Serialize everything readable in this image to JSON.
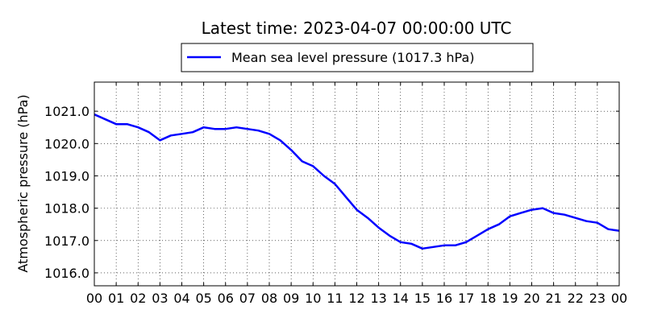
{
  "chart_data": {
    "type": "line",
    "title": "Latest time: 2023-04-07 00:00:00 UTC",
    "ylabel": "Atmospheric pressure (hPa)",
    "xlabel": "",
    "legend": {
      "placement": "top-center",
      "entries": [
        "Mean sea level pressure (1017.3 hPa)"
      ]
    },
    "grid": true,
    "grid_style": "dotted",
    "xlim": [
      0,
      24
    ],
    "ylim": [
      1015.6,
      1021.9
    ],
    "x_tick_labels": [
      "00",
      "01",
      "02",
      "03",
      "04",
      "05",
      "06",
      "07",
      "08",
      "09",
      "10",
      "11",
      "12",
      "13",
      "14",
      "15",
      "16",
      "17",
      "18",
      "19",
      "20",
      "21",
      "22",
      "23",
      "00"
    ],
    "y_tick_values": [
      1016.0,
      1017.0,
      1018.0,
      1019.0,
      1020.0,
      1021.0
    ],
    "y_tick_labels": [
      "1016.0",
      "1017.0",
      "1018.0",
      "1019.0",
      "1020.0",
      "1021.0"
    ],
    "colors": {
      "series": "#0000ff"
    },
    "series": [
      {
        "name": "Mean sea level pressure (1017.3 hPa)",
        "x": [
          0,
          0.5,
          1,
          1.5,
          2,
          2.5,
          3,
          3.5,
          4,
          4.5,
          5,
          5.5,
          6,
          6.5,
          7,
          7.5,
          8,
          8.5,
          9,
          9.5,
          10,
          10.5,
          11,
          11.5,
          12,
          12.5,
          13,
          13.5,
          14,
          14.5,
          15,
          15.5,
          16,
          16.5,
          17,
          17.5,
          18,
          18.5,
          19,
          19.5,
          20,
          20.5,
          21,
          21.5,
          22,
          22.5,
          23,
          23.5,
          24
        ],
        "values": [
          1020.9,
          1020.75,
          1020.6,
          1020.6,
          1020.5,
          1020.35,
          1020.1,
          1020.25,
          1020.3,
          1020.35,
          1020.5,
          1020.45,
          1020.45,
          1020.5,
          1020.45,
          1020.4,
          1020.3,
          1020.1,
          1019.8,
          1019.45,
          1019.3,
          1019.0,
          1018.75,
          1018.35,
          1017.95,
          1017.7,
          1017.4,
          1017.15,
          1016.95,
          1016.9,
          1016.75,
          1016.8,
          1016.85,
          1016.85,
          1016.95,
          1017.15,
          1017.35,
          1017.5,
          1017.75,
          1017.85,
          1017.95,
          1018.0,
          1017.85,
          1017.8,
          1017.7,
          1017.6,
          1017.55,
          1017.35,
          1017.3
        ]
      }
    ]
  }
}
